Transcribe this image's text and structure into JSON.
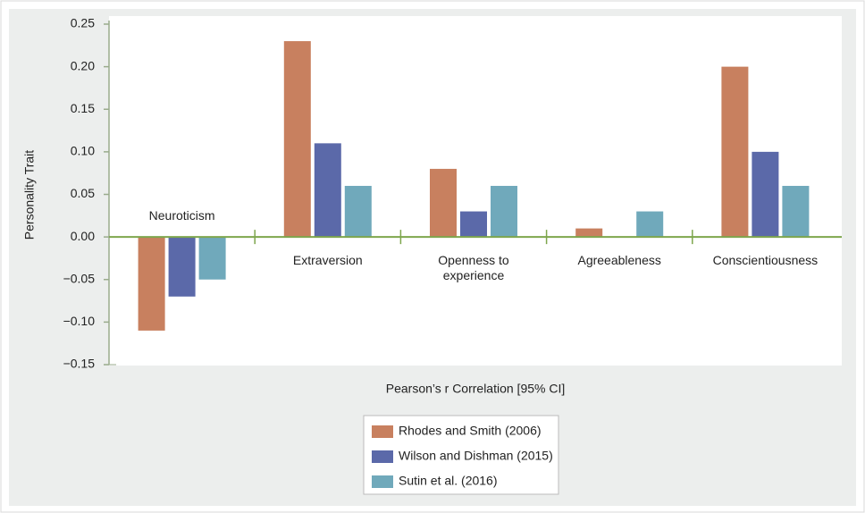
{
  "chart_data": {
    "type": "bar",
    "ylabel": "Personality Trait",
    "xlabel": "Pearson’s r Correlation [95% CI]",
    "categories": [
      "Neuroticism",
      "Extraversion",
      "Openness to experience",
      "Agreeableness",
      "Conscientiousness"
    ],
    "series": [
      {
        "name": "Rhodes and Smith (2006)",
        "color": "#c8805f",
        "values": [
          -0.11,
          0.23,
          0.08,
          0.01,
          0.2
        ]
      },
      {
        "name": "Wilson and Dishman (2015)",
        "color": "#5b69a9",
        "values": [
          -0.07,
          0.11,
          0.03,
          null,
          0.1
        ]
      },
      {
        "name": "Sutin et al. (2016)",
        "color": "#70a9bb",
        "values": [
          -0.05,
          0.06,
          0.06,
          0.03,
          0.06
        ]
      }
    ],
    "ylim": [
      -0.15,
      0.25
    ],
    "yticks": [
      {
        "value": -0.15,
        "label": "−0.15"
      },
      {
        "value": -0.1,
        "label": "−0.10"
      },
      {
        "value": -0.05,
        "label": "−0.05"
      },
      {
        "value": 0,
        "label": "0.00"
      },
      {
        "value": 0.05,
        "label": "0.05"
      },
      {
        "value": 0.1,
        "label": "0.10"
      },
      {
        "value": 0.15,
        "label": "0.15"
      },
      {
        "value": 0.2,
        "label": "0.20"
      },
      {
        "value": 0.25,
        "label": "0.25"
      }
    ],
    "grid": false
  }
}
